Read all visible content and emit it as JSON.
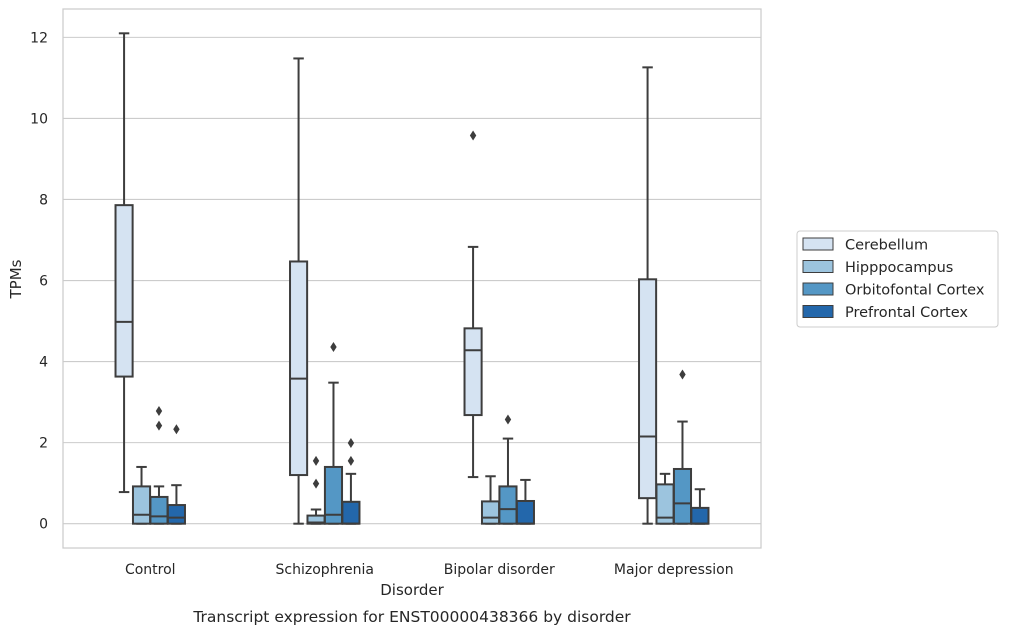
{
  "chart_data": {
    "type": "box",
    "title": "Transcript expression for ENST00000438366 by disorder",
    "xlabel": "Disorder",
    "ylabel": "TPMs",
    "ylim": [
      -0.6,
      12.7
    ],
    "yticks": [
      0,
      2,
      4,
      6,
      8,
      10,
      12
    ],
    "grid": "horizontal",
    "legend_position": "right",
    "categories": [
      "Control",
      "Schizophrenia",
      "Bipolar disorder",
      "Major depression"
    ],
    "series": [
      {
        "name": "Cerebellum",
        "color": "#d5e3f2",
        "boxes": [
          {
            "whislo": 0.78,
            "q1": 3.63,
            "med": 4.98,
            "q3": 7.86,
            "whishi": 12.1,
            "fliers": []
          },
          {
            "whislo": 0.0,
            "q1": 1.2,
            "med": 3.58,
            "q3": 6.47,
            "whishi": 11.48,
            "fliers": []
          },
          {
            "whislo": 1.15,
            "q1": 2.68,
            "med": 4.28,
            "q3": 4.82,
            "whishi": 6.83,
            "fliers": [
              9.58
            ]
          },
          {
            "whislo": 0.0,
            "q1": 0.63,
            "med": 2.15,
            "q3": 6.03,
            "whishi": 11.26,
            "fliers": []
          }
        ]
      },
      {
        "name": "Hipppocampus",
        "color": "#9cc4de",
        "boxes": [
          {
            "whislo": 0.0,
            "q1": 0.0,
            "med": 0.22,
            "q3": 0.92,
            "whishi": 1.4,
            "fliers": []
          },
          {
            "whislo": 0.0,
            "q1": 0.0,
            "med": 0.03,
            "q3": 0.2,
            "whishi": 0.35,
            "fliers": [
              0.99,
              1.55
            ]
          },
          {
            "whislo": 0.0,
            "q1": 0.0,
            "med": 0.15,
            "q3": 0.55,
            "whishi": 1.17,
            "fliers": []
          },
          {
            "whislo": 0.0,
            "q1": 0.0,
            "med": 0.15,
            "q3": 0.97,
            "whishi": 1.23,
            "fliers": []
          }
        ]
      },
      {
        "name": "Orbitofontal Cortex",
        "color": "#5497c5",
        "boxes": [
          {
            "whislo": 0.0,
            "q1": 0.0,
            "med": 0.18,
            "q3": 0.66,
            "whishi": 0.92,
            "fliers": [
              2.42,
              2.78
            ]
          },
          {
            "whislo": 0.0,
            "q1": 0.0,
            "med": 0.22,
            "q3": 1.4,
            "whishi": 3.48,
            "fliers": [
              4.36
            ]
          },
          {
            "whislo": 0.0,
            "q1": 0.0,
            "med": 0.36,
            "q3": 0.92,
            "whishi": 2.1,
            "fliers": [
              2.57
            ]
          },
          {
            "whislo": 0.0,
            "q1": 0.0,
            "med": 0.5,
            "q3": 1.35,
            "whishi": 2.52,
            "fliers": [
              3.68
            ]
          }
        ]
      },
      {
        "name": "Prefrontal Cortex",
        "color": "#2367ab",
        "boxes": [
          {
            "whislo": 0.0,
            "q1": 0.0,
            "med": 0.15,
            "q3": 0.46,
            "whishi": 0.95,
            "fliers": [
              2.33
            ]
          },
          {
            "whislo": 0.0,
            "q1": 0.0,
            "med": 0.0,
            "q3": 0.54,
            "whishi": 1.23,
            "fliers": [
              1.55,
              1.99
            ]
          },
          {
            "whislo": 0.0,
            "q1": 0.0,
            "med": 0.0,
            "q3": 0.56,
            "whishi": 1.08,
            "fliers": []
          },
          {
            "whislo": 0.0,
            "q1": 0.0,
            "med": 0.0,
            "q3": 0.39,
            "whishi": 0.85,
            "fliers": []
          }
        ]
      }
    ]
  }
}
